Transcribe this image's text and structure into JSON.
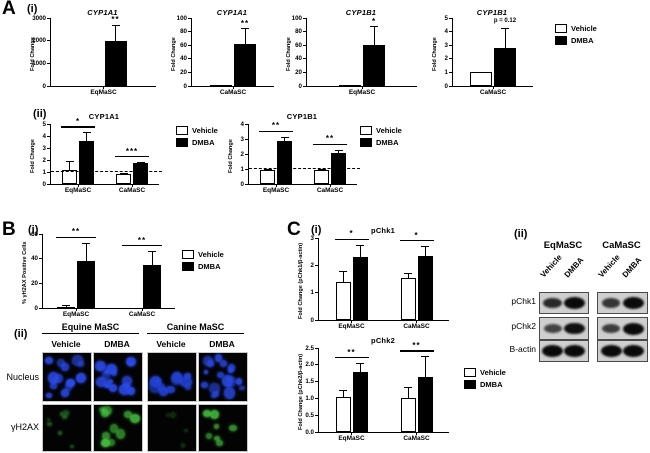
{
  "labels": {
    "a": "A",
    "b": "B",
    "c": "C",
    "i": "(i)",
    "ii": "(ii)"
  },
  "legend": {
    "vehicle": "Vehicle",
    "dmba": "DMBA"
  },
  "chart_data": [
    {
      "id": "a1_cyp1a1_eq",
      "type": "bar",
      "title": "CYP1A1",
      "title_italic": true,
      "ylabel": "Fold Change",
      "ylim": [
        0,
        3000
      ],
      "yticks": [
        "0",
        "1000",
        "2000",
        "3000"
      ],
      "categories": [
        "EqMaSC"
      ],
      "series": [
        {
          "name": "Vehicle",
          "values": [
            2
          ],
          "errors": [
            0
          ]
        },
        {
          "name": "DMBA",
          "values": [
            2000
          ],
          "errors": [
            700
          ]
        }
      ],
      "sig": [
        {
          "group": 0,
          "label": "**",
          "bracket": false
        }
      ]
    },
    {
      "id": "a1_cyp1a1_ca",
      "type": "bar",
      "title": "CYP1A1",
      "title_italic": true,
      "ylabel": "Fold Change",
      "ylim": [
        0,
        100
      ],
      "yticks": [
        "0",
        "20",
        "40",
        "60",
        "80",
        "100"
      ],
      "categories": [
        "CaMaSC"
      ],
      "series": [
        {
          "name": "Vehicle",
          "values": [
            1.5
          ],
          "errors": [
            0
          ]
        },
        {
          "name": "DMBA",
          "values": [
            62
          ],
          "errors": [
            23
          ]
        }
      ],
      "sig": [
        {
          "group": 0,
          "label": "**",
          "bracket": false
        }
      ]
    },
    {
      "id": "a1_cyp1b1_eq",
      "type": "bar",
      "title": "CYP1B1",
      "title_italic": true,
      "ylabel": "Fold Change",
      "ylim": [
        0,
        100
      ],
      "yticks": [
        "0",
        "20",
        "40",
        "60",
        "80",
        "100"
      ],
      "categories": [
        "EqMaSC"
      ],
      "series": [
        {
          "name": "Vehicle",
          "values": [
            1.5
          ],
          "errors": [
            0
          ]
        },
        {
          "name": "DMBA",
          "values": [
            60
          ],
          "errors": [
            28
          ]
        }
      ],
      "sig": [
        {
          "group": 0,
          "label": "*",
          "bracket": false
        }
      ]
    },
    {
      "id": "a1_cyp1b1_ca",
      "type": "bar",
      "title": "CYP1B1",
      "title_italic": true,
      "ylabel": "Fold Change",
      "ylim": [
        0,
        5
      ],
      "yticks": [
        "0",
        "1",
        "2",
        "3",
        "4",
        "5"
      ],
      "categories": [
        "CaMaSC"
      ],
      "series": [
        {
          "name": "Vehicle",
          "values": [
            1.0
          ],
          "errors": [
            0
          ]
        },
        {
          "name": "DMBA",
          "values": [
            2.8
          ],
          "errors": [
            1.5
          ]
        }
      ],
      "sig": [
        {
          "group": 0,
          "label": "p = 0.12",
          "bracket": false
        }
      ]
    },
    {
      "id": "a2_cyp1a1",
      "type": "bar",
      "title": "CYP1A1",
      "title_italic": false,
      "ylabel": "Fold Change",
      "ylim": [
        0,
        5
      ],
      "yticks": [
        "0",
        "1",
        "2",
        "3",
        "4",
        "5"
      ],
      "categories": [
        "EqMaSC",
        "CaMaSC"
      ],
      "dash_y": 1,
      "series": [
        {
          "name": "Vehicle",
          "values": [
            1.2,
            0.8
          ],
          "errors": [
            0.75,
            0.12
          ]
        },
        {
          "name": "DMBA",
          "values": [
            3.6,
            1.75
          ],
          "errors": [
            0.7,
            0.08
          ]
        }
      ],
      "sig": [
        {
          "group": 0,
          "label": "*",
          "bracket": true
        },
        {
          "group": 1,
          "label": "***",
          "bracket": true
        }
      ]
    },
    {
      "id": "a2_cyp1b1",
      "type": "bar",
      "title": "CYP1B1",
      "title_italic": false,
      "ylabel": "Fold Change",
      "ylim": [
        0,
        4
      ],
      "yticks": [
        "0",
        "1",
        "2",
        "3",
        "4"
      ],
      "categories": [
        "EqMaSC",
        "CaMaSC"
      ],
      "dash_y": 1,
      "series": [
        {
          "name": "Vehicle",
          "values": [
            0.95,
            0.95
          ],
          "errors": [
            0.08,
            0.05
          ]
        },
        {
          "name": "DMBA",
          "values": [
            2.9,
            2.05
          ],
          "errors": [
            0.25,
            0.25
          ]
        }
      ],
      "sig": [
        {
          "group": 0,
          "label": "**",
          "bracket": true
        },
        {
          "group": 1,
          "label": "**",
          "bracket": true
        }
      ]
    },
    {
      "id": "b1_h2ax",
      "type": "bar",
      "title": "",
      "title_italic": false,
      "ylabel": "% γH2AX Positive Cells",
      "ylim": [
        0,
        60
      ],
      "yticks": [
        "0",
        "20",
        "40",
        "60"
      ],
      "categories": [
        "EqMaSC",
        "CaMaSC"
      ],
      "series": [
        {
          "name": "Vehicle",
          "values": [
            1,
            0.3
          ],
          "errors": [
            1.2,
            0
          ]
        },
        {
          "name": "DMBA",
          "values": [
            38,
            35
          ],
          "errors": [
            15,
            11
          ]
        }
      ],
      "sig": [
        {
          "group": 0,
          "label": "**",
          "bracket": true
        },
        {
          "group": 1,
          "label": "**",
          "bracket": true
        }
      ]
    },
    {
      "id": "c_pchk1",
      "type": "bar",
      "title": "pChk1",
      "title_italic": false,
      "ylabel": "Fold Change (pChk1/β-actin)",
      "ylim": [
        0,
        3
      ],
      "yticks": [
        "0",
        "1",
        "2",
        "3"
      ],
      "categories": [
        "EqMaSC",
        "CaMaSC"
      ],
      "series": [
        {
          "name": "Vehicle",
          "values": [
            1.4,
            1.55
          ],
          "errors": [
            0.4,
            0.18
          ]
        },
        {
          "name": "DMBA",
          "values": [
            2.3,
            2.35
          ],
          "errors": [
            0.45,
            0.35
          ]
        }
      ],
      "sig": [
        {
          "group": 0,
          "label": "*",
          "bracket": true
        },
        {
          "group": 1,
          "label": "*",
          "bracket": true
        }
      ]
    },
    {
      "id": "c_pchk2",
      "type": "bar",
      "title": "pChk2",
      "title_italic": false,
      "ylabel": "Fold Change (pChk2/β-actin)",
      "ylim": [
        0,
        2.5
      ],
      "yticks": [
        "0.0",
        "0.5",
        "1.0",
        "1.5",
        "2.0",
        "2.5"
      ],
      "categories": [
        "EqMaSC",
        "CaMaSC"
      ],
      "series": [
        {
          "name": "Vehicle",
          "values": [
            1.05,
            1.0
          ],
          "errors": [
            0.2,
            0.35
          ]
        },
        {
          "name": "DMBA",
          "values": [
            1.8,
            1.65
          ],
          "errors": [
            0.25,
            0.6
          ]
        }
      ],
      "sig": [
        {
          "group": 0,
          "label": "**",
          "bracket": true
        },
        {
          "group": 1,
          "label": "**",
          "bracket": true
        }
      ]
    }
  ],
  "microscopy": {
    "group_headers": [
      "Equine MaSC",
      "Canine MaSC"
    ],
    "col_headers": [
      "Vehicle",
      "DMBA",
      "Vehicle",
      "DMBA"
    ],
    "row_labels": [
      "Nucleus",
      "γH2AX"
    ],
    "cells": [
      {
        "stain": "nucleus",
        "group": "Equine MaSC",
        "treatment": "Vehicle",
        "color": "#2b4ae8",
        "count": 14,
        "min_size": 5,
        "max_size": 12,
        "dim": false
      },
      {
        "stain": "nucleus",
        "group": "Equine MaSC",
        "treatment": "DMBA",
        "color": "#2b4ae8",
        "count": 16,
        "min_size": 5,
        "max_size": 13,
        "dim": false
      },
      {
        "stain": "nucleus",
        "group": "Canine MaSC",
        "treatment": "Vehicle",
        "color": "#2443d6",
        "count": 11,
        "min_size": 5,
        "max_size": 12,
        "dim": false
      },
      {
        "stain": "nucleus",
        "group": "Canine MaSC",
        "treatment": "DMBA",
        "color": "#2b4ae8",
        "count": 17,
        "min_size": 4,
        "max_size": 11,
        "dim": false
      },
      {
        "stain": "gh2ax",
        "group": "Equine MaSC",
        "treatment": "Vehicle",
        "color": "#2f8f33",
        "count": 8,
        "min_size": 3,
        "max_size": 7,
        "dim": true
      },
      {
        "stain": "gh2ax",
        "group": "Equine MaSC",
        "treatment": "DMBA",
        "color": "#46c13e",
        "count": 10,
        "min_size": 5,
        "max_size": 10,
        "dim": false
      },
      {
        "stain": "gh2ax",
        "group": "Canine MaSC",
        "treatment": "Vehicle",
        "color": "#246b28",
        "count": 4,
        "min_size": 3,
        "max_size": 6,
        "dim": true
      },
      {
        "stain": "gh2ax",
        "group": "Canine MaSC",
        "treatment": "DMBA",
        "color": "#46c13e",
        "count": 7,
        "min_size": 4,
        "max_size": 9,
        "dim": false
      }
    ]
  },
  "western_blot": {
    "group_headers": [
      "EqMaSC",
      "CaMaSC"
    ],
    "lane_labels": [
      "Vehicle",
      "DMBA"
    ],
    "rows": [
      {
        "label": "pChk1",
        "bands": [
          [
            0.75,
            1.0
          ],
          [
            0.65,
            1.0
          ]
        ]
      },
      {
        "label": "pChk2",
        "bands": [
          [
            0.55,
            0.95
          ],
          [
            0.6,
            1.0
          ]
        ]
      },
      {
        "label": "B-actin",
        "bands": [
          [
            1.0,
            1.0
          ],
          [
            1.0,
            1.0
          ]
        ]
      }
    ]
  }
}
